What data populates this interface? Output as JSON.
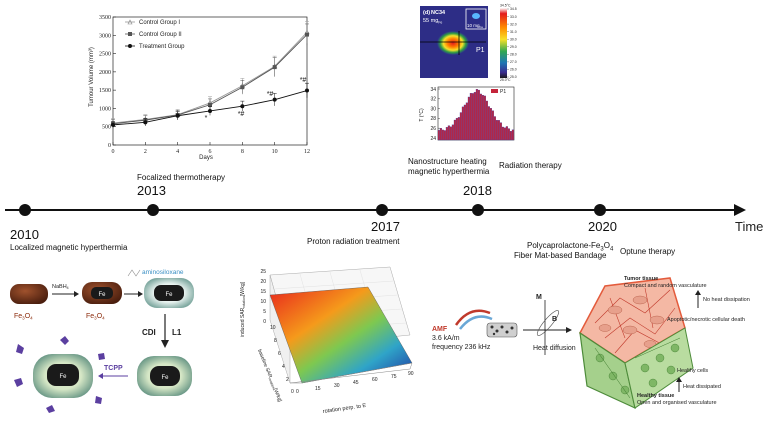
{
  "timeline": {
    "axis_label": "Time",
    "events": [
      {
        "year": "2010",
        "label": "Localized magnetic hyperthermia"
      },
      {
        "year": "2013",
        "label": "Focalized thermotherapy"
      },
      {
        "year": "2017",
        "label": "Proton radiation treatment"
      },
      {
        "year": "2018",
        "label_line1": "Nanostructure heating",
        "label_line2": "magnetic hyperthermia",
        "label_extra": "Radiation therapy"
      },
      {
        "year": "2020",
        "label_line1": "Polycaprolactone-Fe",
        "label_line1_sub": "3",
        "label_line1_b": "O",
        "label_line1_sub2": "4",
        "label_line2": "Fiber Mat-based Bandage",
        "label_extra": "Optune therapy"
      }
    ]
  },
  "growth_chart": {
    "ylabel": "Tumour Volume (mm³)",
    "xlabel": "Days",
    "yticks": [
      "0",
      "500",
      "1000",
      "1500",
      "2000",
      "2500",
      "3000",
      "3500"
    ],
    "xticks": [
      "0",
      "2",
      "4",
      "6",
      "8",
      "10",
      "12"
    ],
    "legend": [
      "Control Group I",
      "Control Group II",
      "Treatment Group"
    ],
    "markers": [
      "*",
      "*#",
      "*#",
      "*#"
    ]
  },
  "chart_data": {
    "type": "line",
    "title": "",
    "xlabel": "Days",
    "ylabel": "Tumour Volume (mm³)",
    "xlim": [
      0,
      12
    ],
    "ylim": [
      0,
      3500
    ],
    "x": [
      0,
      2,
      4,
      6,
      8,
      10,
      12
    ],
    "series": [
      {
        "name": "Control Group I",
        "values": [
          600,
          700,
          830,
          1150,
          1620,
          2150,
          3080
        ],
        "errors": [
          120,
          130,
          140,
          170,
          200,
          280,
          300
        ]
      },
      {
        "name": "Control Group II",
        "values": [
          580,
          680,
          820,
          1100,
          1580,
          2130,
          3020
        ],
        "errors": [
          110,
          120,
          130,
          160,
          190,
          260,
          290
        ]
      },
      {
        "name": "Treatment Group",
        "values": [
          550,
          620,
          800,
          930,
          1060,
          1240,
          1490
        ],
        "errors": [
          90,
          100,
          110,
          120,
          140,
          170,
          200
        ]
      }
    ]
  },
  "thermal_image": {
    "panel": "(d)",
    "sample": "NC34",
    "dose_main": "55 mg",
    "dose_main_sub": "Fe",
    "dose_inset": "10 mg",
    "dose_inset_sub": "Fe",
    "point": "P1",
    "scale_max": "34.5°C",
    "scale_min": "25.0°C",
    "scale_ticks": [
      "34.5",
      "33.0",
      "32.0",
      "31.0",
      "30.0",
      "29.0",
      "28.0",
      "27.0",
      "26.0",
      "25.0"
    ],
    "colors": {
      "accent": "#2a2a8c"
    }
  },
  "temp_hist": {
    "ylabel": "T (°C)",
    "yticks": [
      "34",
      "32",
      "30",
      "28",
      "26",
      "24"
    ],
    "legend": "P1"
  },
  "synthesis": {
    "reagent1": "NaBH",
    "reagent1_sub": "4",
    "coating": "aminosiloxane",
    "core": "Fe",
    "label1": "Fe",
    "label1_sub1": "3",
    "label1_b": "O",
    "label1_sub2": "4",
    "label2": "Fe",
    "label2_sub1": "3",
    "label2_b": "O",
    "label2_sub2": "4",
    "step2": "CDI",
    "step3": "L1",
    "step4": "TCPP"
  },
  "sar_plot": {
    "zlabel": "induced SAR",
    "zlabel_sub": "rotation",
    "zlabel_unit": "[W/kg]",
    "zticks": [
      "0",
      "5",
      "10",
      "15",
      "20",
      "25"
    ],
    "xlabel": "baseline SAR",
    "xlabel_sub": "rotation",
    "xlabel_unit": "[W/kg]",
    "xticks": [
      "10",
      "8",
      "6",
      "4",
      "2",
      "0"
    ],
    "ylabel": "rotation perp. to E",
    "yticks": [
      "0",
      "15",
      "30",
      "45",
      "60",
      "75",
      "90"
    ]
  },
  "amf_setup": {
    "title": "AMF",
    "field": "3.6 kA/m",
    "freq": "frequency 236 kHz",
    "label_m": "M",
    "label_b": "B",
    "diffusion": "Heat diffusion"
  },
  "tissue": {
    "tumor_title": "Tumor tissue",
    "tumor_desc": "Compact and random vasculature",
    "no_heat": "No heat dissipation",
    "death": "Apoptotic/necrotic cellular death",
    "healthy_cells": "Healthy cells",
    "heat_diss": "Heat dissipated",
    "healthy_title": "Healthy tissue",
    "healthy_desc": "Open and organised vasculature"
  }
}
